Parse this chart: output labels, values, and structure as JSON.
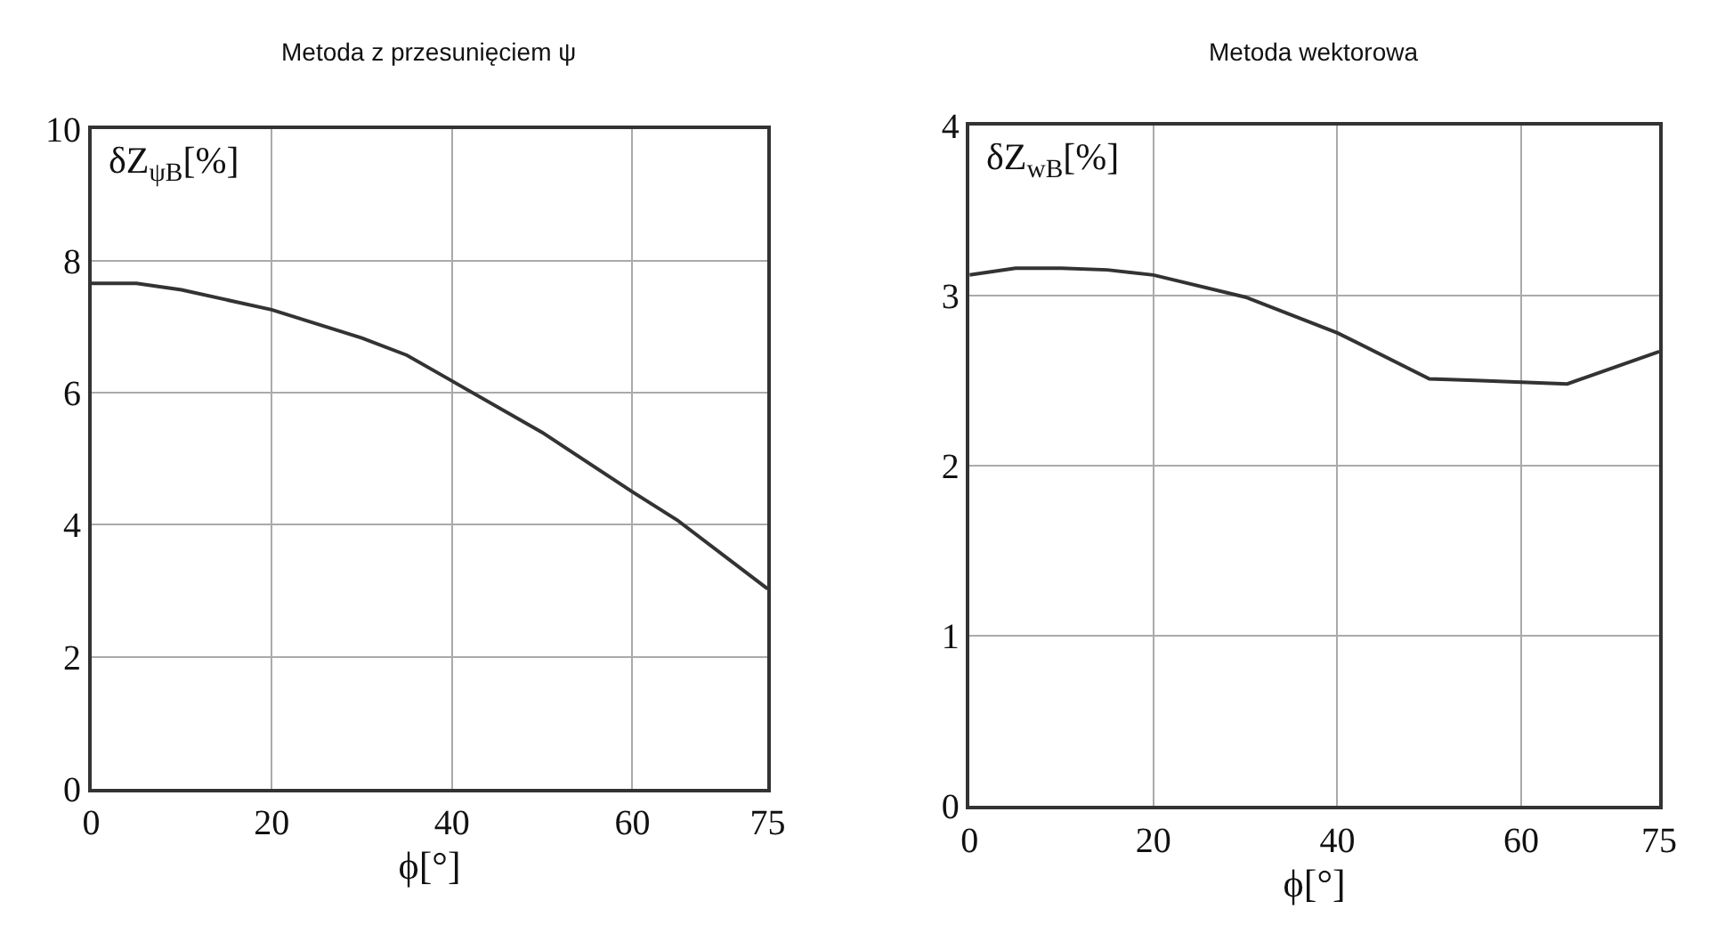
{
  "chart_data": [
    {
      "type": "line",
      "title": "Metoda z przesunięciem ψ",
      "ylabel": "δZ$_{ψB}$[%]",
      "xlabel": "ϕ[°]",
      "x": [
        0,
        5,
        10,
        20,
        30,
        35,
        40,
        50,
        60,
        65,
        75
      ],
      "series": [
        {
          "color": "#333333",
          "values": [
            7.66,
            7.66,
            7.56,
            7.26,
            6.83,
            6.57,
            6.18,
            5.4,
            4.5,
            4.07,
            3.03
          ]
        }
      ],
      "xlim": [
        0,
        75
      ],
      "xticks": [
        0,
        20,
        40,
        60,
        75
      ],
      "ylim": [
        0,
        10
      ],
      "yticks": [
        0,
        2,
        4,
        6,
        8,
        10
      ],
      "grid": true,
      "marker": "none",
      "line_style": "solid"
    },
    {
      "type": "line",
      "title": "Metoda wektorowa",
      "ylabel": "δZ$_{wB}$[%]",
      "xlabel": "ϕ[°]",
      "x": [
        0,
        5,
        10,
        15,
        20,
        30,
        40,
        50,
        55,
        60,
        65,
        75
      ],
      "series": [
        {
          "color": "#333333",
          "values": [
            3.12,
            3.16,
            3.16,
            3.15,
            3.12,
            2.99,
            2.78,
            2.51,
            2.5,
            2.49,
            2.48,
            2.67
          ]
        }
      ],
      "xlim": [
        0,
        75
      ],
      "xticks": [
        0,
        20,
        40,
        60,
        75
      ],
      "ylim": [
        0,
        4
      ],
      "yticks": [
        0,
        1,
        2,
        3,
        4
      ],
      "grid": true,
      "marker": "none",
      "line_style": "solid"
    }
  ]
}
